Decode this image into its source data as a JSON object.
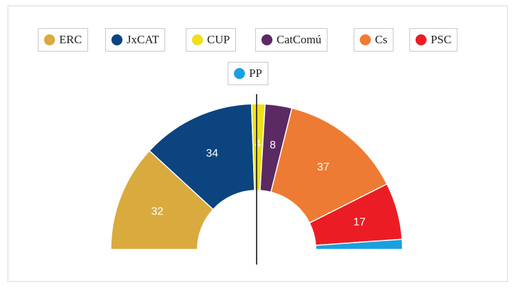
{
  "chart_data": {
    "type": "pie",
    "subtype": "parliament-half-donut",
    "total_seats": 135,
    "majority_marker": true,
    "legend_placement": "top",
    "series": [
      {
        "name": "ERC",
        "value": 32,
        "color": "#d9aa3e",
        "label": "32"
      },
      {
        "name": "JxCAT",
        "value": 34,
        "color": "#0b447f",
        "label": "34"
      },
      {
        "name": "CUP",
        "value": 4,
        "color": "#efe018",
        "label": "4"
      },
      {
        "name": "CatComú",
        "value": 8,
        "color": "#5b2a63",
        "label": "8"
      },
      {
        "name": "Cs",
        "value": 37,
        "color": "#ee7b33",
        "label": "37"
      },
      {
        "name": "PSC",
        "value": 17,
        "color": "#ec1c24",
        "label": "17"
      },
      {
        "name": "PP",
        "value": 3,
        "color": "#1aa0e0",
        "label": ""
      }
    ]
  }
}
